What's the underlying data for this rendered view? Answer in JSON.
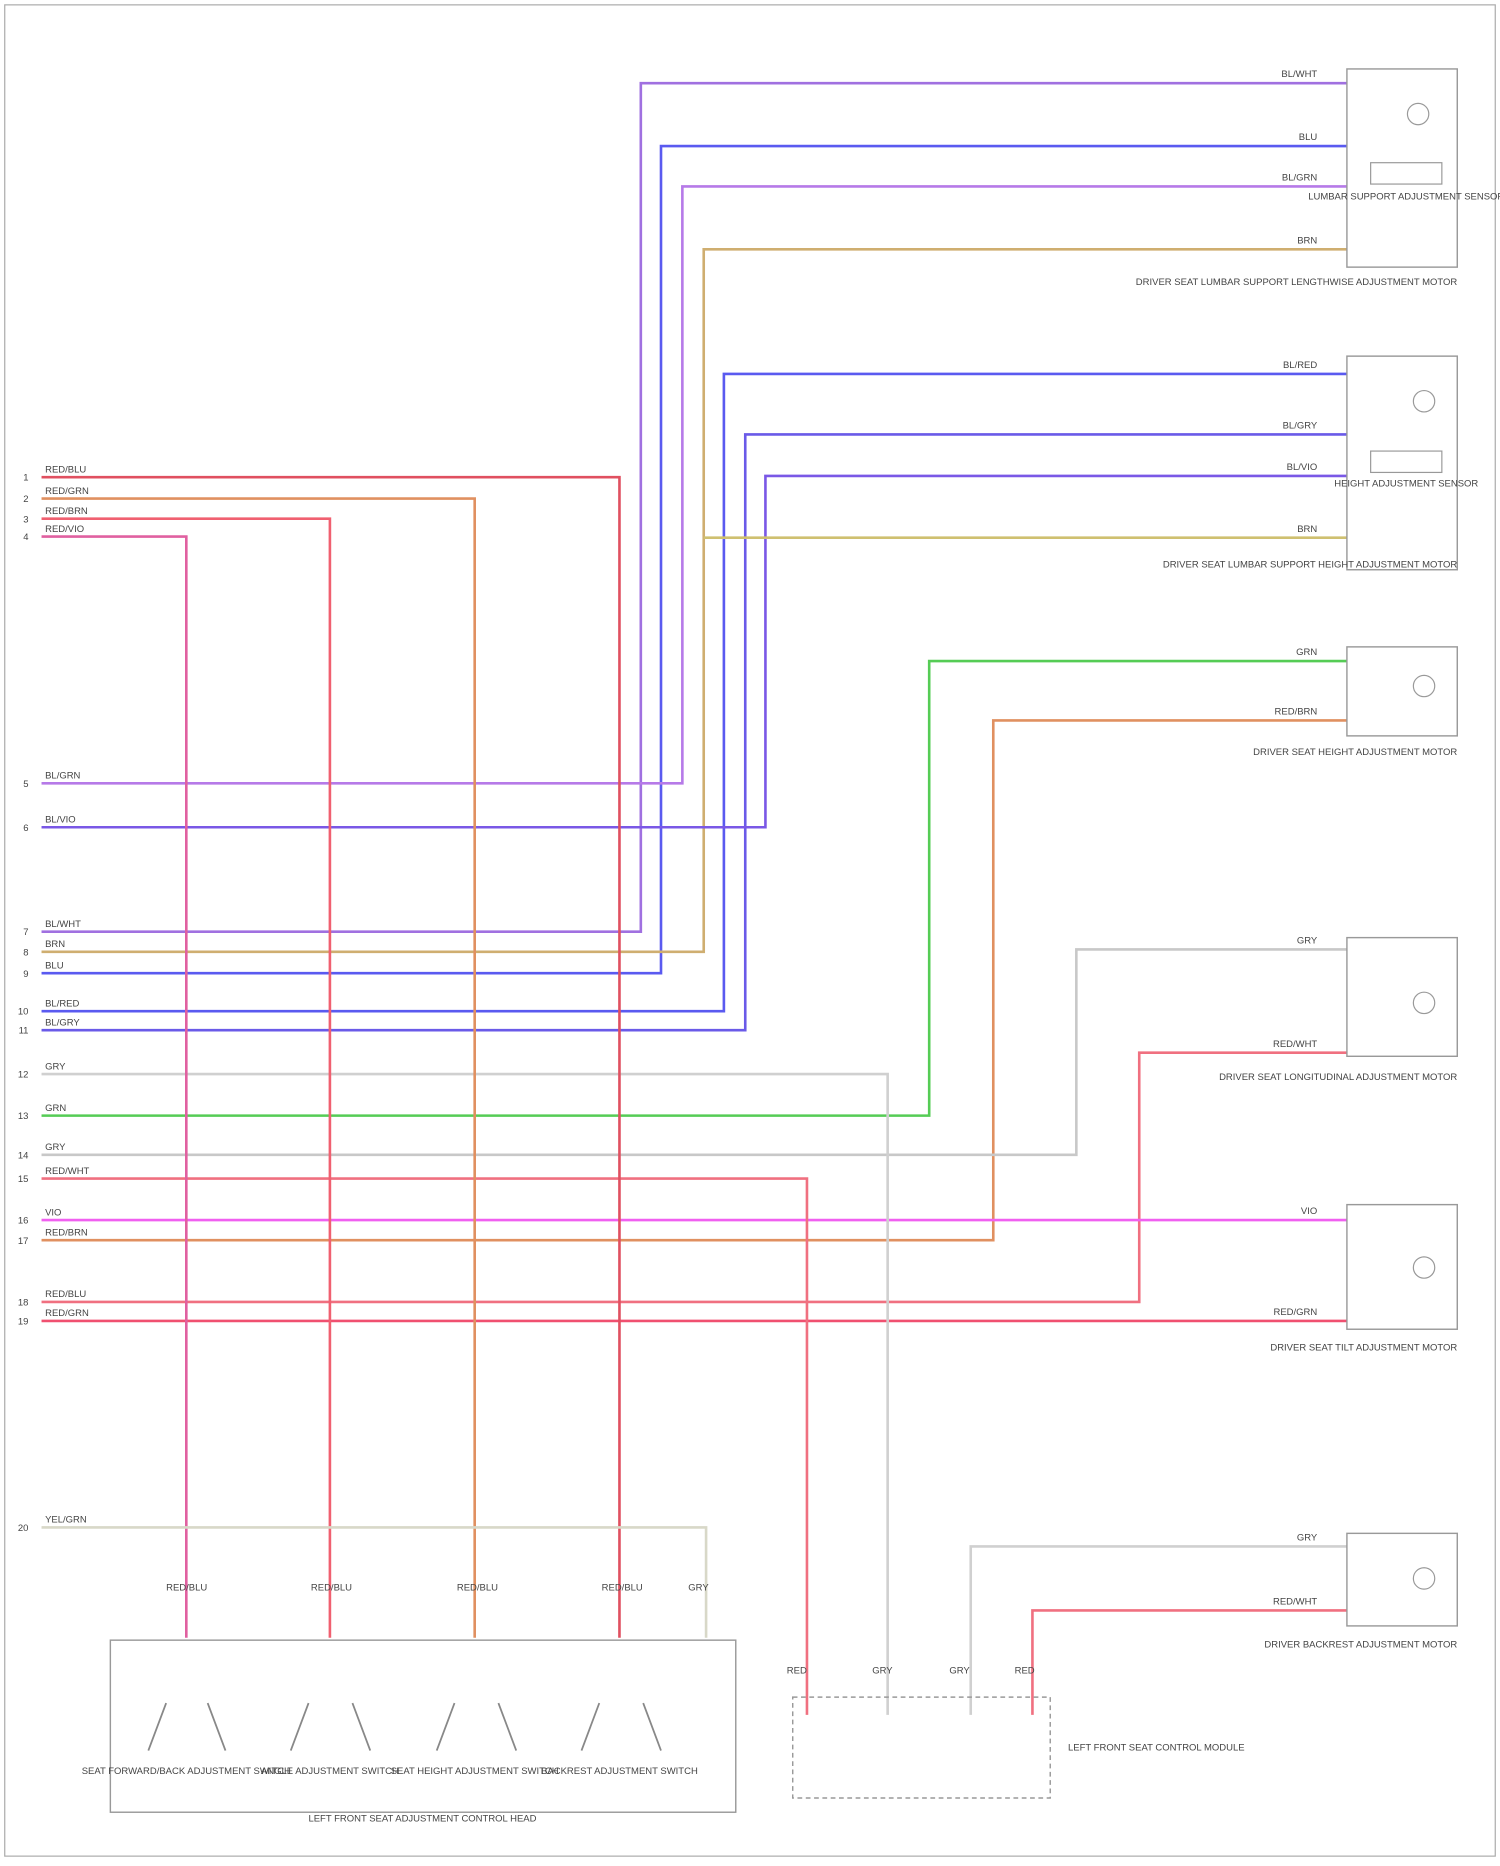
{
  "left_connector": [
    {
      "pin": "1",
      "wire": "RED/BLU"
    },
    {
      "pin": "2",
      "wire": "RED/GRN"
    },
    {
      "pin": "3",
      "wire": "RED/BRN"
    },
    {
      "pin": "4",
      "wire": "RED/VIO"
    },
    {
      "pin": "5",
      "wire": "BL/GRN"
    },
    {
      "pin": "6",
      "wire": "BL/VIO"
    },
    {
      "pin": "7",
      "wire": "BL/WHT"
    },
    {
      "pin": "8",
      "wire": "BRN"
    },
    {
      "pin": "9",
      "wire": "BLU"
    },
    {
      "pin": "10",
      "wire": "BL/RED"
    },
    {
      "pin": "11",
      "wire": "BL/GRY"
    },
    {
      "pin": "12",
      "wire": "GRY"
    },
    {
      "pin": "13",
      "wire": "GRN"
    },
    {
      "pin": "14",
      "wire": "GRY"
    },
    {
      "pin": "15",
      "wire": "RED/WHT"
    },
    {
      "pin": "16",
      "wire": "VIO"
    },
    {
      "pin": "17",
      "wire": "RED/BRN"
    },
    {
      "pin": "18",
      "wire": "RED/BLU"
    },
    {
      "pin": "19",
      "wire": "RED/GRN"
    },
    {
      "pin": "20",
      "wire": "YEL/GRN"
    }
  ],
  "right_wires": [
    "BL/WHT",
    "BLU",
    "BL/GRN",
    "BRN",
    "BL/RED",
    "BL/GRY",
    "BL/VIO",
    "BRN",
    "GRN",
    "RED/BRN",
    "GRY",
    "RED/WHT",
    "VIO",
    "RED/GRN",
    "GRY",
    "RED/WHT"
  ],
  "components": [
    {
      "name": "DRIVER SEAT LUMBAR SUPPORT LENGTHWISE ADJUSTMENT MOTOR",
      "sensor": "LUMBAR SUPPORT ADJUSTMENT SENSOR"
    },
    {
      "name": "DRIVER SEAT LUMBAR SUPPORT HEIGHT ADJUSTMENT MOTOR",
      "sensor": "HEIGHT ADJUSTMENT SENSOR"
    },
    {
      "name": "DRIVER SEAT HEIGHT ADJUSTMENT MOTOR"
    },
    {
      "name": "DRIVER SEAT LONGITUDINAL ADJUSTMENT MOTOR"
    },
    {
      "name": "DRIVER SEAT TILT ADJUSTMENT MOTOR"
    },
    {
      "name": "DRIVER BACKREST ADJUSTMENT MOTOR"
    }
  ],
  "switch_wires": [
    "RED/BLU",
    "RED/BLU",
    "RED/BLU",
    "RED/BLU",
    "GRY"
  ],
  "switches": [
    "SEAT FORWARD/BACK ADJUSTMENT SWITCH",
    "ANGLE ADJUSTMENT SWITCH",
    "SEAT HEIGHT ADJUSTMENT SWITCH",
    "BACKREST ADJUSTMENT SWITCH"
  ],
  "control_head": "LEFT FRONT SEAT ADJUSTMENT CONTROL HEAD",
  "module_wires": [
    "RED",
    "GRY",
    "GRY",
    "RED"
  ],
  "module": "LEFT FRONT SEAT CONTROL MODULE"
}
